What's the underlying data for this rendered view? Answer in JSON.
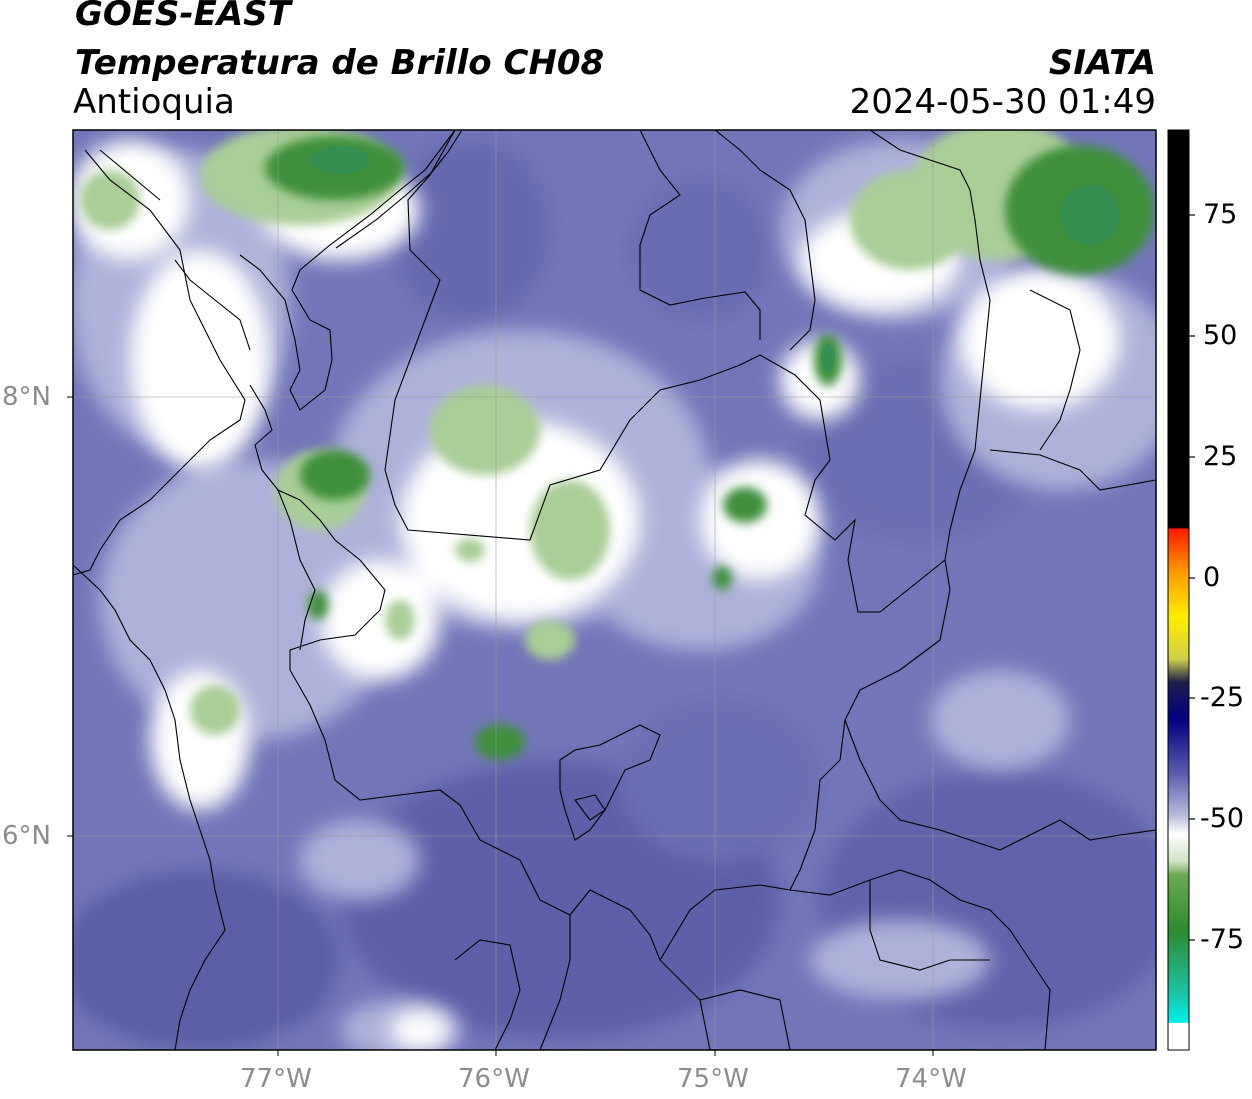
{
  "header": {
    "satellite": "GOES-EAST",
    "product": "Temperatura de Brillo CH08",
    "region": "Antioquia",
    "agency": "SIATA",
    "datetime": "2024-05-30 01:49"
  },
  "map": {
    "lon_ticks": [
      "77°W",
      "76°W",
      "75°W",
      "74°W"
    ],
    "lat_ticks": [
      "8°N",
      "6°N"
    ],
    "colors": {
      "background_purple": "#7478b8",
      "deep_purple": "#5a5ea6",
      "light_lavender": "#b4b8dc",
      "white": "#ffffff",
      "light_green": "#a8cd96",
      "green": "#3f8f3c",
      "dark_green": "#2a8a46"
    }
  },
  "colorbar": {
    "ticks": [
      "75",
      "50",
      "25",
      "0",
      "-25",
      "-50",
      "-75"
    ],
    "colors": {
      "black": "#000000",
      "red": "#ff1a00",
      "orange": "#ff9900",
      "yellow": "#ffee00",
      "navy": "#000080",
      "blue": "#5a5eab",
      "white": "#ffffff",
      "green": "#2f8a2f",
      "teal": "#1fbfa0",
      "cyan": "#00f0e6"
    }
  }
}
